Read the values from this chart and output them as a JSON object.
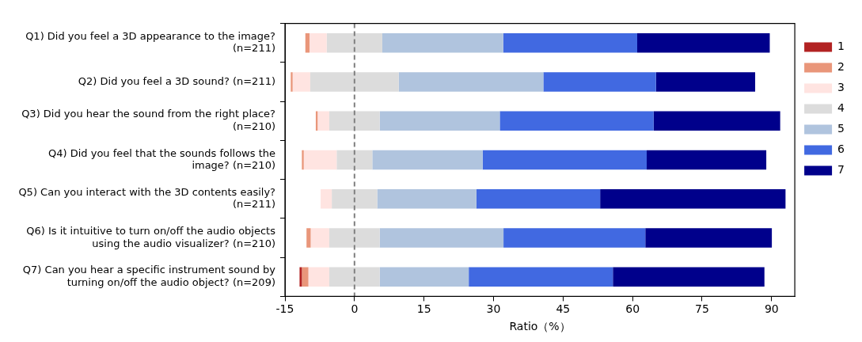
{
  "chart_data": {
    "type": "bar",
    "orientation": "horizontal",
    "xlabel": "Ratio（%）",
    "categories": [
      "Q1) Did you feel a 3D appearance to the image? (n=211)",
      "Q2) Did you feel a 3D sound? (n=211)",
      "Q3) Did you hear the sound from the right place? (n=210)",
      "Q4) Did you feel that the sounds follows the image? (n=210)",
      "Q5) Can you interact with the 3D contents easily? (n=211)",
      "Q6) Is it intuitive to turn on/off the audio objects using the audio visualizer? (n=210)",
      "Q7) Can you hear a specific instrument sound by turning on/off the audio object? (n=209)"
    ],
    "series": [
      {
        "name": "1",
        "color": "#b22222",
        "values": [
          0,
          0,
          0,
          0,
          0,
          0,
          0.5
        ],
        "base": [
          null,
          null,
          null,
          null,
          null,
          null,
          -11.85
        ]
      },
      {
        "name": "2",
        "color": "#e9967a",
        "values": [
          0.9,
          0.4,
          0.4,
          0.4,
          0,
          0.9,
          1.4
        ],
        "base": [
          -10.6,
          -13.75,
          -8.35,
          -11.35,
          null,
          -10.35,
          -11.35
        ]
      },
      {
        "name": "3",
        "color": "#ffe4e1",
        "values": [
          3.7,
          3.8,
          2.5,
          7.1,
          2.4,
          4.0,
          4.5
        ],
        "base": [
          -9.7,
          -13.35,
          -7.95,
          -10.95,
          -7.3,
          -9.45,
          -9.95
        ]
      },
      {
        "name": "4",
        "color": "#dcdcdc",
        "values": [
          12.0,
          19.1,
          10.9,
          7.7,
          9.8,
          10.9,
          10.9
        ],
        "base": [
          -6.0,
          -9.55,
          -5.45,
          -3.85,
          -4.9,
          -5.45,
          -5.45
        ]
      },
      {
        "name": "5",
        "color": "#b0c4de",
        "values": [
          26.1,
          31.2,
          25.9,
          23.8,
          21.4,
          26.7,
          19.2
        ],
        "base": [
          6.0,
          9.55,
          5.45,
          3.85,
          4.9,
          5.45,
          5.45
        ]
      },
      {
        "name": "6",
        "color": "#4169e1",
        "values": [
          28.9,
          24.3,
          33.2,
          35.4,
          26.7,
          30.6,
          31.1
        ],
        "base": [
          32.1,
          40.75,
          31.35,
          27.65,
          26.3,
          32.15,
          24.65
        ]
      },
      {
        "name": "7",
        "color": "#00008b",
        "values": [
          28.6,
          21.4,
          27.3,
          25.8,
          40.0,
          27.3,
          32.7
        ],
        "base": [
          61.0,
          65.05,
          64.55,
          63.05,
          53.0,
          62.75,
          55.75
        ]
      }
    ],
    "xlim": [
      -15,
      95
    ],
    "xticks": [
      -15,
      0,
      15,
      30,
      45,
      60,
      75,
      90
    ],
    "ref_lines": [
      {
        "axis": "x",
        "value": 0,
        "color": "#808080",
        "line_style": "dashed"
      }
    ],
    "grid": false,
    "legend": "right"
  }
}
